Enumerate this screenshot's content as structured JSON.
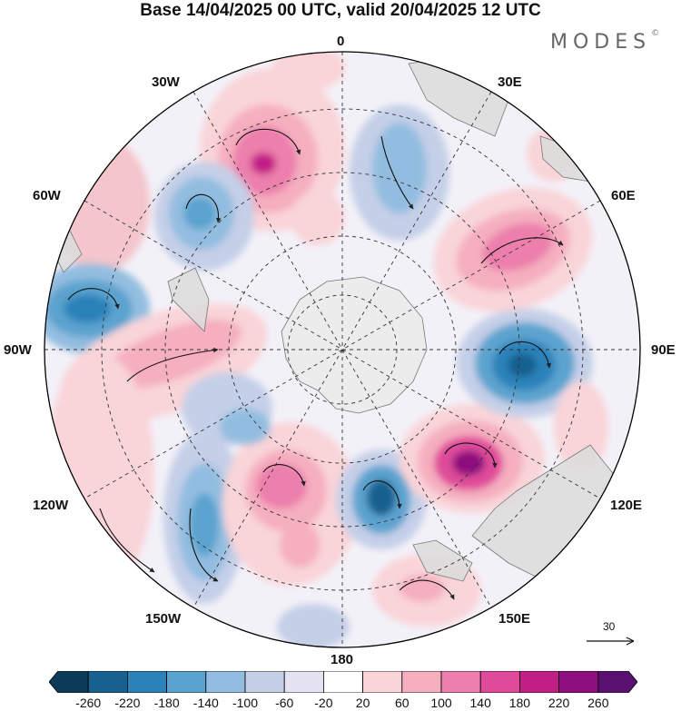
{
  "title": "Base 14/04/2025 00 UTC, valid 20/04/2025 12 UTC",
  "brand": {
    "text": "MODES",
    "mark": "©"
  },
  "longitude_labels": {
    "lon_0": "0",
    "lon_30e": "30E",
    "lon_60e": "60E",
    "lon_90e": "90E",
    "lon_120e": "120E",
    "lon_150e": "150E",
    "lon_180": "180",
    "lon_150w": "150W",
    "lon_120w": "120W",
    "lon_90w": "90W",
    "lon_60w": "60W",
    "lon_30w": "30W"
  },
  "reference_vector": {
    "value": "30",
    "icon": "arrow-right-icon"
  },
  "colorbar": {
    "labels": [
      "-260",
      "-220",
      "-180",
      "-140",
      "-100",
      "-60",
      "-20",
      "20",
      "60",
      "100",
      "140",
      "180",
      "220",
      "260"
    ],
    "colors": [
      "#0c3a57",
      "#17608f",
      "#2b82b9",
      "#5ba3cf",
      "#93bde0",
      "#c4cfe8",
      "#e3e3f2",
      "#ffffff",
      "#f9d4d8",
      "#f5afbf",
      "#ec7fac",
      "#df4b9a",
      "#c21f86",
      "#8e0f7e",
      "#5a1070"
    ]
  },
  "colors": {
    "land": "#dedede",
    "antarctica": "#e8e8e8",
    "positive_strong": "#c21f86",
    "negative_strong": "#17608f"
  }
}
